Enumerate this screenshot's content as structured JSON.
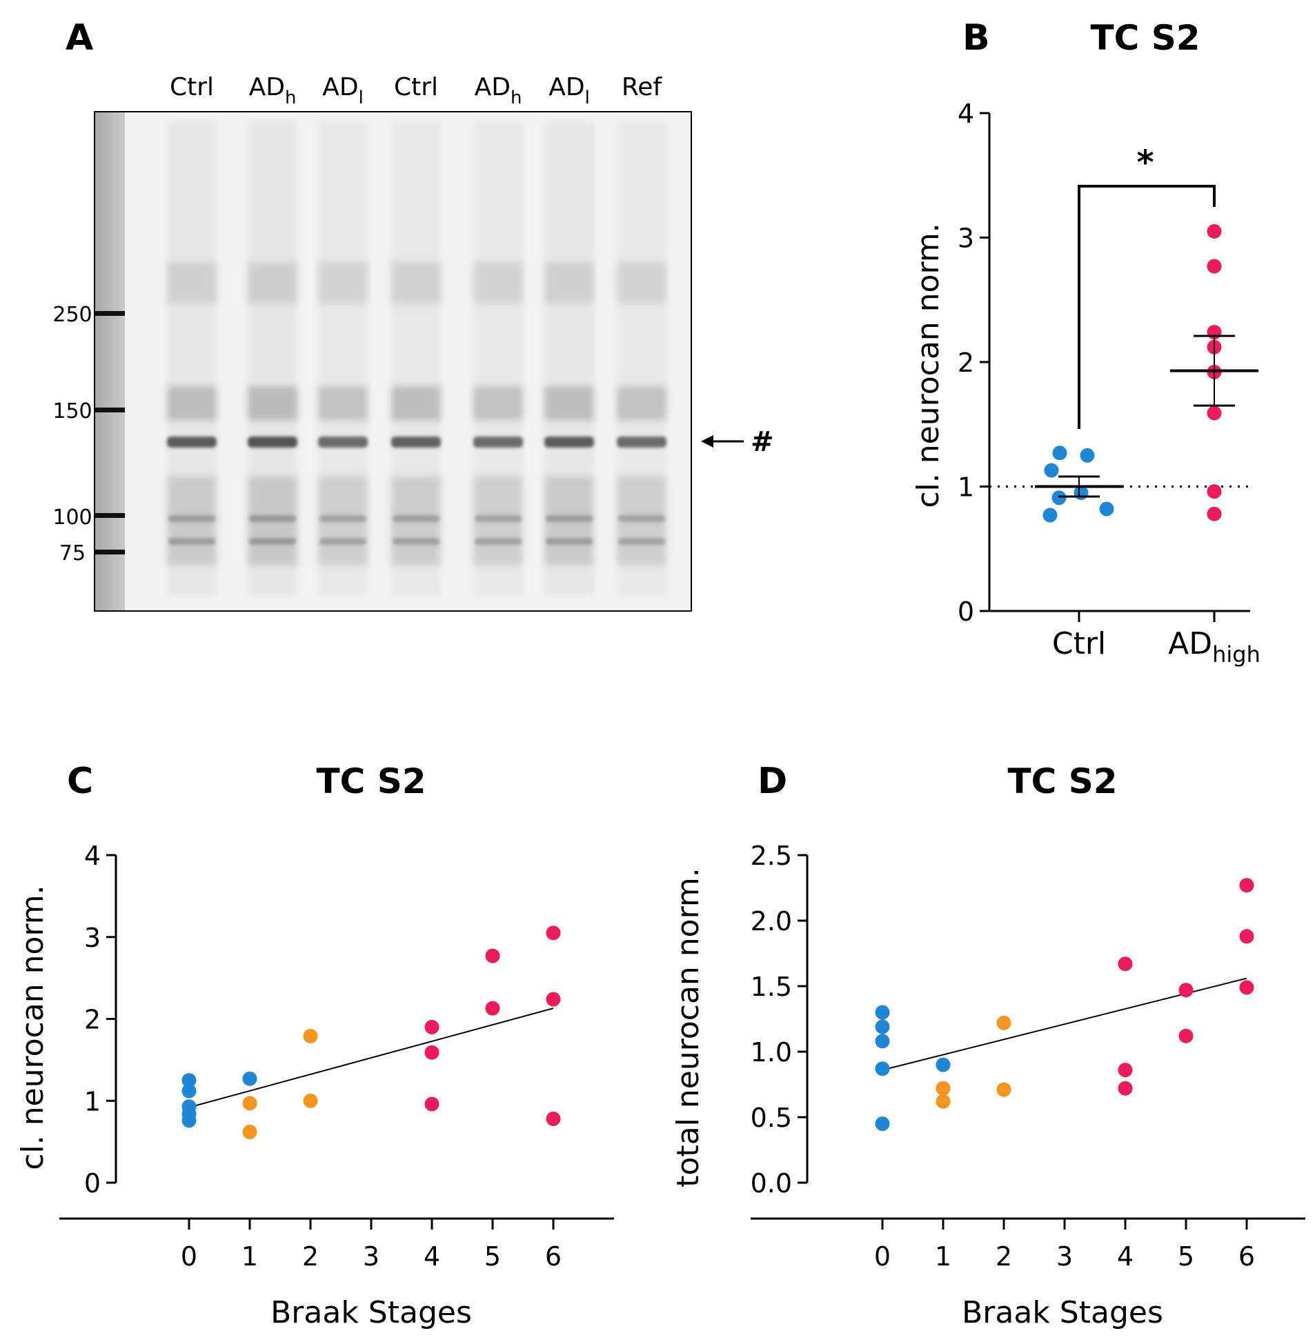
{
  "colors": {
    "ctrl": "#1f87d6",
    "ad_low": "#f5941e",
    "ad_high": "#ec1b5a",
    "axis": "#000000"
  },
  "panel_a": {
    "letter": "A",
    "lanes": [
      {
        "main": "Ctrl",
        "sub": ""
      },
      {
        "main": "AD",
        "sub": "h"
      },
      {
        "main": "AD",
        "sub": "l"
      },
      {
        "main": "Ctrl",
        "sub": ""
      },
      {
        "main": "AD",
        "sub": "h"
      },
      {
        "main": "AD",
        "sub": "l"
      },
      {
        "main": "Ref",
        "sub": ""
      }
    ],
    "markers": [
      "250",
      "150",
      "100",
      "75"
    ],
    "band_label": "#"
  },
  "chart_data": [
    {
      "panel": "B",
      "type": "scatter",
      "title": "TC  S2",
      "ylabel": "cl. neurocan norm.",
      "ylim": [
        0,
        4
      ],
      "yticks": [
        "0",
        "1",
        "2",
        "3",
        "4"
      ],
      "categories": [
        {
          "main": "Ctrl",
          "sub": ""
        },
        {
          "main": "AD",
          "sub": "high"
        }
      ],
      "reference_line": 1,
      "significance": "*",
      "series": [
        {
          "name": "Ctrl",
          "values": [
            1.27,
            1.25,
            1.13,
            0.95,
            0.91,
            0.82,
            0.77
          ],
          "mean": 1.0,
          "sem": 0.08
        },
        {
          "name": "ADhigh",
          "values": [
            3.05,
            2.77,
            2.24,
            2.12,
            1.92,
            1.59,
            0.96,
            0.78
          ],
          "mean": 1.93,
          "sem": 0.28
        }
      ]
    },
    {
      "panel": "C",
      "type": "scatter",
      "title": "TC  S2",
      "xlabel": "Braak Stages",
      "ylabel": "cl. neurocan norm.",
      "ylim": [
        0,
        4
      ],
      "yticks": [
        "0",
        "1",
        "2",
        "3",
        "4"
      ],
      "xticks": [
        "0",
        "1",
        "2",
        "3",
        "4",
        "5",
        "6"
      ],
      "regression": {
        "start": [
          0,
          0.92
        ],
        "end": [
          6,
          2.13
        ]
      },
      "series": [
        {
          "name": "Ctrl",
          "color_key": "ctrl",
          "points": [
            [
              0,
              1.25
            ],
            [
              0,
              1.12
            ],
            [
              0,
              0.93
            ],
            [
              0,
              0.84
            ],
            [
              0,
              0.76
            ],
            [
              1,
              1.27
            ]
          ]
        },
        {
          "name": "AD low",
          "color_key": "ad_low",
          "points": [
            [
              1,
              0.97
            ],
            [
              1,
              0.62
            ],
            [
              2,
              1.79
            ],
            [
              2,
              1.0
            ]
          ]
        },
        {
          "name": "AD high",
          "color_key": "ad_high",
          "points": [
            [
              4,
              1.9
            ],
            [
              4,
              1.59
            ],
            [
              4,
              0.96
            ],
            [
              5,
              2.77
            ],
            [
              5,
              2.13
            ],
            [
              6,
              3.05
            ],
            [
              6,
              2.24
            ],
            [
              6,
              0.78
            ]
          ]
        }
      ]
    },
    {
      "panel": "D",
      "type": "scatter",
      "title": "TC  S2",
      "xlabel": "Braak Stages",
      "ylabel": "total neurocan norm.",
      "ylim": [
        0,
        2.5
      ],
      "yticks": [
        "0.0",
        "0.5",
        "1.0",
        "1.5",
        "2.0",
        "2.5"
      ],
      "xticks": [
        "0",
        "1",
        "2",
        "3",
        "4",
        "5",
        "6"
      ],
      "regression": {
        "start": [
          0,
          0.86
        ],
        "end": [
          6,
          1.56
        ]
      },
      "series": [
        {
          "name": "Ctrl",
          "color_key": "ctrl",
          "points": [
            [
              0,
              1.3
            ],
            [
              0,
              1.19
            ],
            [
              0,
              1.08
            ],
            [
              0,
              0.87
            ],
            [
              0,
              0.45
            ],
            [
              1,
              0.9
            ]
          ]
        },
        {
          "name": "AD low",
          "color_key": "ad_low",
          "points": [
            [
              1,
              0.72
            ],
            [
              1,
              0.62
            ],
            [
              2,
              1.22
            ],
            [
              2,
              0.71
            ]
          ]
        },
        {
          "name": "AD high",
          "color_key": "ad_high",
          "points": [
            [
              4,
              1.67
            ],
            [
              4,
              0.86
            ],
            [
              4,
              0.72
            ],
            [
              5,
              1.47
            ],
            [
              5,
              1.12
            ],
            [
              6,
              2.27
            ],
            [
              6,
              1.88
            ],
            [
              6,
              1.49
            ]
          ]
        }
      ]
    }
  ]
}
